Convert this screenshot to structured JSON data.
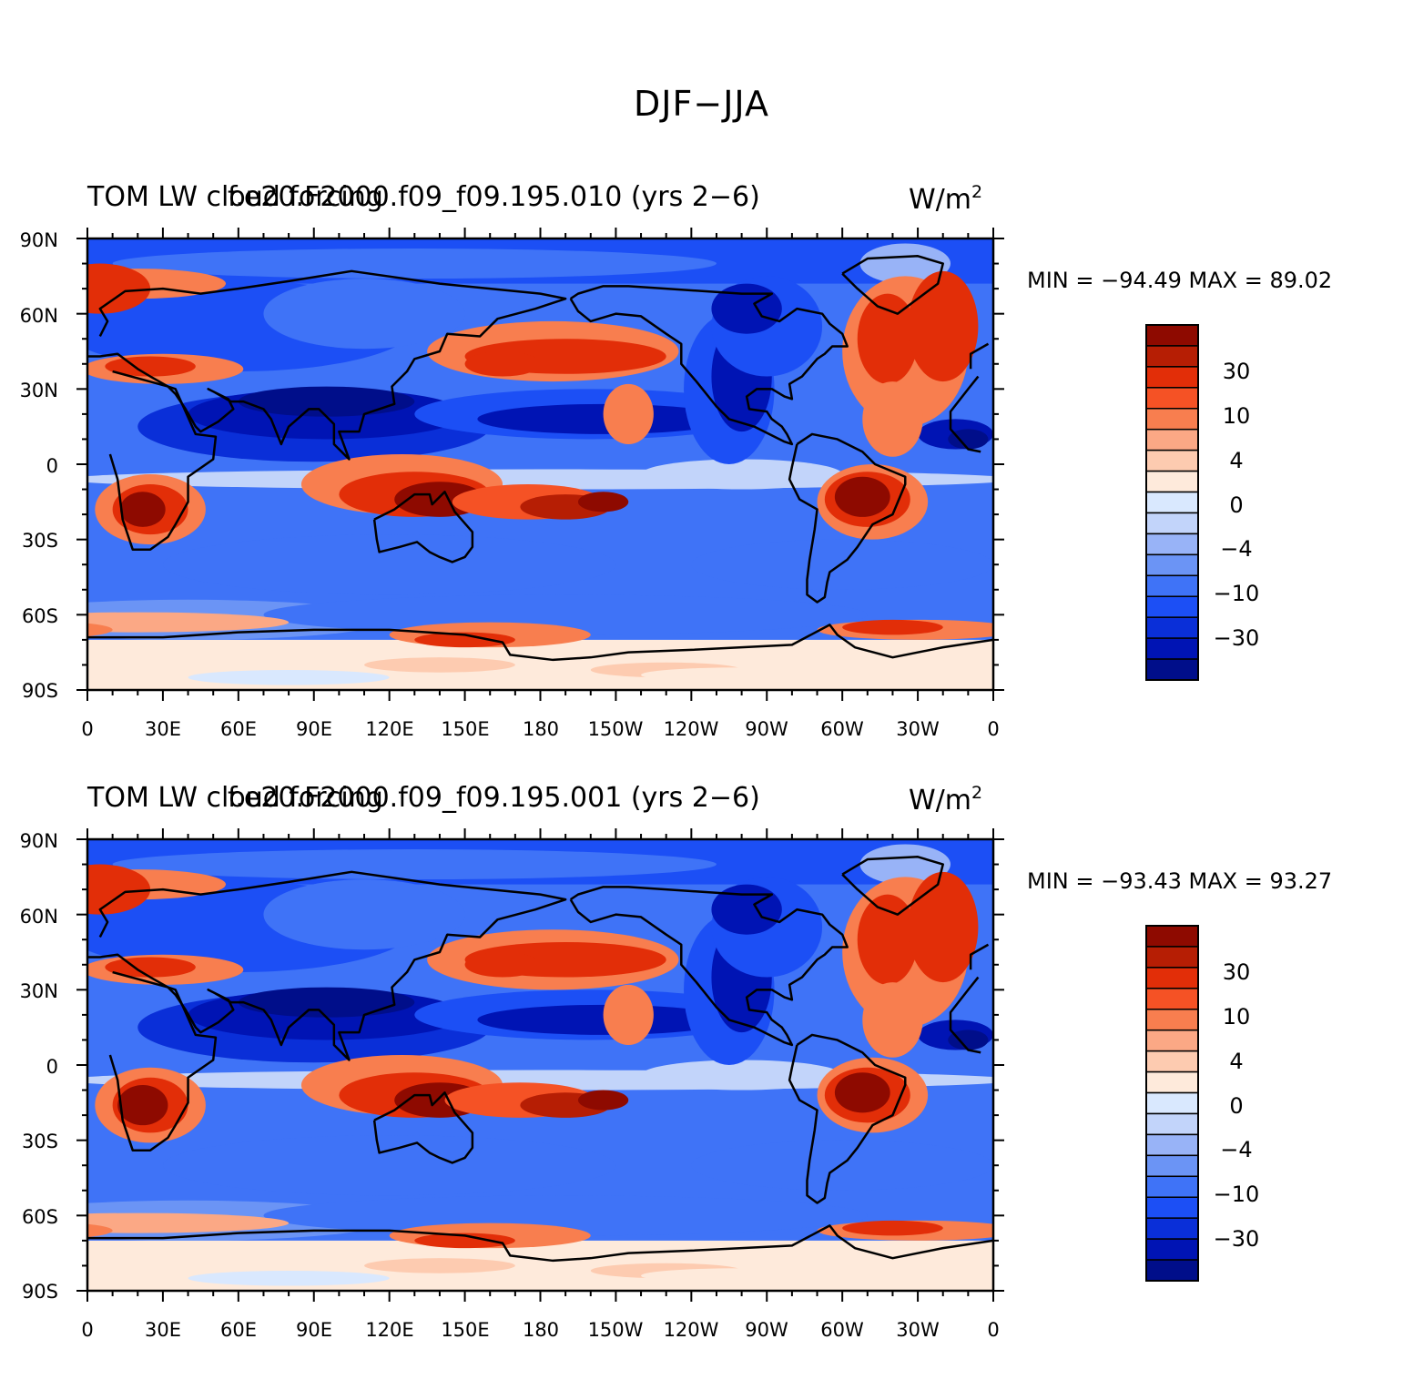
{
  "title": "DJF−JJA",
  "colorbar": {
    "colors": [
      "#000e8a",
      "#0014b4",
      "#0a2fd8",
      "#1c4ff5",
      "#3f73f7",
      "#6b94f5",
      "#98b3f7",
      "#c2d4fa",
      "#d9e8fe",
      "#feeadb",
      "#fdcbb0",
      "#fba885",
      "#f87e4f",
      "#f55225",
      "#e22e08",
      "#b61e04",
      "#8e0a00"
    ],
    "labels": [
      "30",
      "10",
      "4",
      "0",
      "−4",
      "−10",
      "−30"
    ]
  },
  "axes": {
    "lat_ticks": [
      "90N",
      "60N",
      "30N",
      "0",
      "30S",
      "60S",
      "90S"
    ],
    "lon_ticks": [
      "0",
      "30E",
      "60E",
      "90E",
      "120E",
      "150E",
      "180",
      "150W",
      "120W",
      "90W",
      "60W",
      "30W",
      "0"
    ]
  },
  "panels": [
    {
      "variable": "TOM LW cloud forcing",
      "case": "f.e20.F2000.f09_f09.195.010 (yrs 2−6)",
      "units": "W/m",
      "units_sup": "2",
      "minmax": "MIN = −94.49 MAX =  89.02"
    },
    {
      "variable": "TOM LW cloud forcing",
      "case": "f.e20.F2000.f09_f09.195.001 (yrs 2−6)",
      "units": "W/m",
      "units_sup": "2",
      "minmax": "MIN = −93.43 MAX =  93.27"
    }
  ]
}
